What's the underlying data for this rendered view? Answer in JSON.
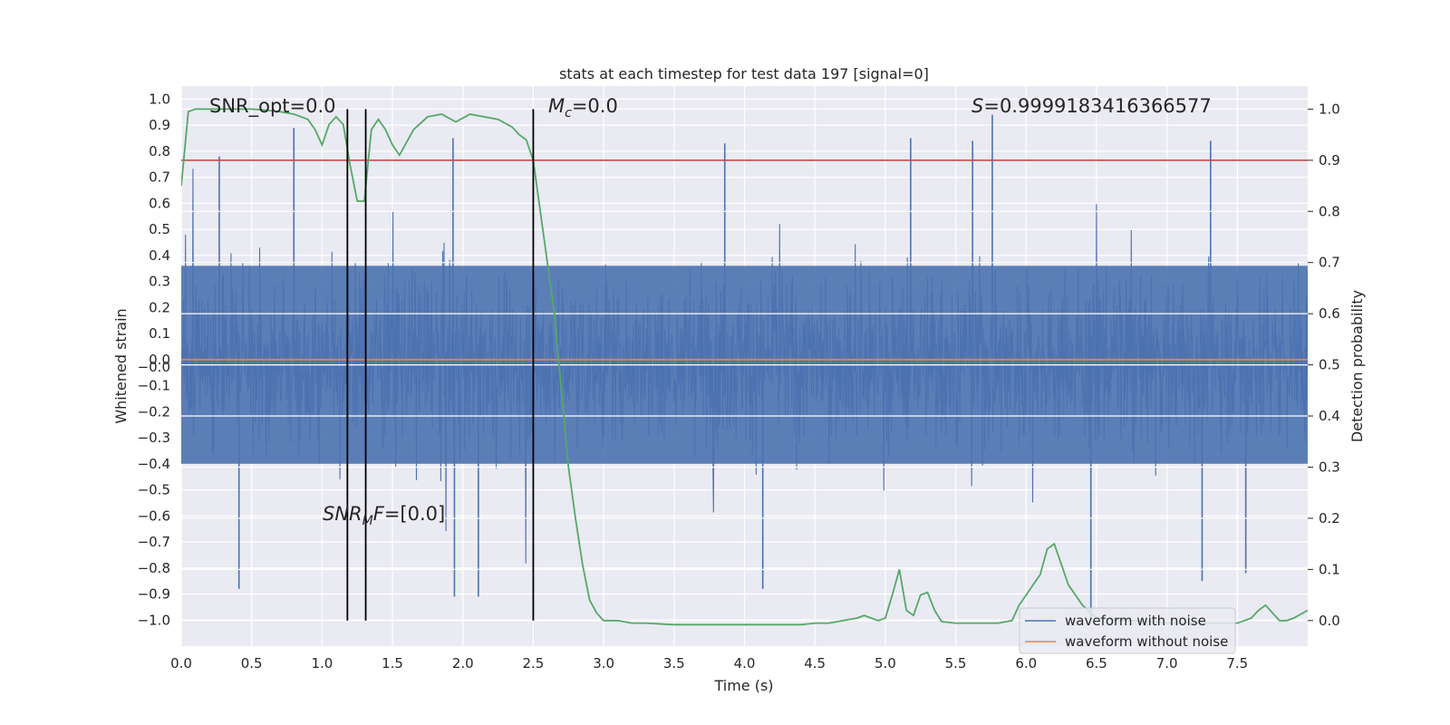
{
  "chart_data": {
    "type": "line",
    "title": "stats at each timestep for test data 197 [signal=0]",
    "xlabel": "Time (s)",
    "ylabel": "Whitened strain",
    "y2label": "Detection probability",
    "xlim": [
      0.0,
      8.0
    ],
    "ylim": [
      -1.1,
      1.05
    ],
    "y2lim": [
      -0.05,
      1.045
    ],
    "xticks": [
      "0.0",
      "0.5",
      "1.0",
      "1.5",
      "2.0",
      "2.5",
      "3.0",
      "3.5",
      "4.0",
      "4.5",
      "5.0",
      "5.5",
      "6.0",
      "6.5",
      "7.0",
      "7.5"
    ],
    "yticks": [
      "1.0",
      "0.9",
      "0.8",
      "0.7",
      "0.6",
      "0.5",
      "0.4",
      "0.3",
      "0.2",
      "0.1",
      "0.0",
      "-0.0",
      "-0.1",
      "-0.2",
      "-0.3",
      "-0.4",
      "-0.5",
      "-0.6",
      "-0.7",
      "-0.8",
      "-0.9",
      "-1.0"
    ],
    "y2ticks": [
      "1.0",
      "0.9",
      "0.8",
      "0.7",
      "0.6",
      "0.5",
      "0.4",
      "0.3",
      "0.2",
      "0.1",
      "0.0"
    ],
    "grid": true,
    "legend_position": "lower-right",
    "annotations": {
      "snr_opt": "SNR_opt=0.0",
      "mc": "=0.0",
      "mc_symbol": "M",
      "mc_sub": "c",
      "s": "=0.9999183416366577",
      "s_symbol": "S",
      "snr_mf": "=[0.0]",
      "snr_mf_symbol": "SNR",
      "snr_mf_sub": "M",
      "snr_mf_tail": "F"
    },
    "series": [
      {
        "name": "waveform with noise",
        "color": "#4c72b0",
        "description_values": "dense noise, amplitude ~±0.35 typical with spikes up to ±0.95",
        "spikes": [
          {
            "x": 0.27,
            "y": 0.78
          },
          {
            "x": 0.8,
            "y": 0.89
          },
          {
            "x": 1.93,
            "y": 0.85
          },
          {
            "x": 3.86,
            "y": 0.83
          },
          {
            "x": 5.18,
            "y": 0.85
          },
          {
            "x": 5.62,
            "y": 0.84
          },
          {
            "x": 5.76,
            "y": 0.94
          },
          {
            "x": 7.31,
            "y": 0.84
          },
          {
            "x": 0.41,
            "y": -0.88
          },
          {
            "x": 1.94,
            "y": -0.91
          },
          {
            "x": 2.11,
            "y": -0.91
          },
          {
            "x": 4.13,
            "y": -0.88
          },
          {
            "x": 6.46,
            "y": -1.0
          },
          {
            "x": 7.25,
            "y": -0.85
          },
          {
            "x": 7.56,
            "y": -0.82
          }
        ]
      },
      {
        "name": "waveform without noise",
        "color": "#dd8452",
        "x": [
          0.0,
          8.0
        ],
        "y": [
          0.0,
          0.0
        ]
      },
      {
        "name": "detection probability",
        "color": "#55a868",
        "axis": "right",
        "x": [
          0.0,
          0.05,
          0.1,
          0.2,
          0.3,
          0.4,
          0.5,
          0.6,
          0.7,
          0.8,
          0.9,
          0.95,
          1.0,
          1.05,
          1.1,
          1.15,
          1.2,
          1.25,
          1.3,
          1.35,
          1.4,
          1.45,
          1.5,
          1.55,
          1.65,
          1.75,
          1.85,
          1.95,
          2.05,
          2.15,
          2.25,
          2.35,
          2.4,
          2.45,
          2.5,
          2.6,
          2.65,
          2.7,
          2.75,
          2.8,
          2.85,
          2.9,
          2.95,
          3.0,
          3.1,
          3.2,
          3.3,
          3.5,
          4.0,
          4.4,
          4.5,
          4.6,
          4.7,
          4.8,
          4.85,
          4.9,
          4.95,
          5.0,
          5.05,
          5.1,
          5.15,
          5.2,
          5.25,
          5.3,
          5.35,
          5.4,
          5.5,
          5.7,
          5.8,
          5.9,
          5.95,
          6.0,
          6.05,
          6.1,
          6.15,
          6.2,
          6.3,
          6.4,
          6.5,
          7.0,
          7.4,
          7.5,
          7.55,
          7.6,
          7.65,
          7.7,
          7.8,
          7.85,
          7.9,
          8.0
        ],
        "y": [
          0.85,
          0.995,
          1.0,
          1.0,
          1.0,
          1.0,
          1.0,
          0.998,
          0.995,
          0.99,
          0.98,
          0.96,
          0.93,
          0.97,
          0.985,
          0.97,
          0.89,
          0.82,
          0.82,
          0.96,
          0.98,
          0.96,
          0.93,
          0.91,
          0.96,
          0.985,
          0.99,
          0.975,
          0.99,
          0.985,
          0.98,
          0.965,
          0.95,
          0.94,
          0.9,
          0.7,
          0.6,
          0.45,
          0.3,
          0.2,
          0.11,
          0.04,
          0.015,
          0.0,
          0.0,
          -0.005,
          -0.005,
          -0.008,
          -0.008,
          -0.008,
          -0.005,
          -0.005,
          0.0,
          0.005,
          0.01,
          0.005,
          0.0,
          0.005,
          0.05,
          0.1,
          0.02,
          0.01,
          0.05,
          0.055,
          0.02,
          -0.002,
          -0.005,
          -0.005,
          -0.005,
          0.0,
          0.03,
          0.05,
          0.07,
          0.09,
          0.14,
          0.15,
          0.07,
          0.03,
          0.005,
          -0.005,
          -0.005,
          -0.005,
          0.0,
          0.005,
          0.02,
          0.03,
          0.0,
          0.0,
          0.005,
          0.02
        ]
      }
    ],
    "vlines": [
      {
        "x": 1.18,
        "color": "#000000"
      },
      {
        "x": 1.31,
        "color": "#000000"
      },
      {
        "x": 2.5,
        "color": "#000000"
      }
    ],
    "hlines": [
      {
        "axis": "right",
        "y": 0.9,
        "color": "#c44e52"
      }
    ],
    "style": {
      "axes_bg": "#eaeaf2",
      "grid_color": "#ffffff"
    }
  }
}
